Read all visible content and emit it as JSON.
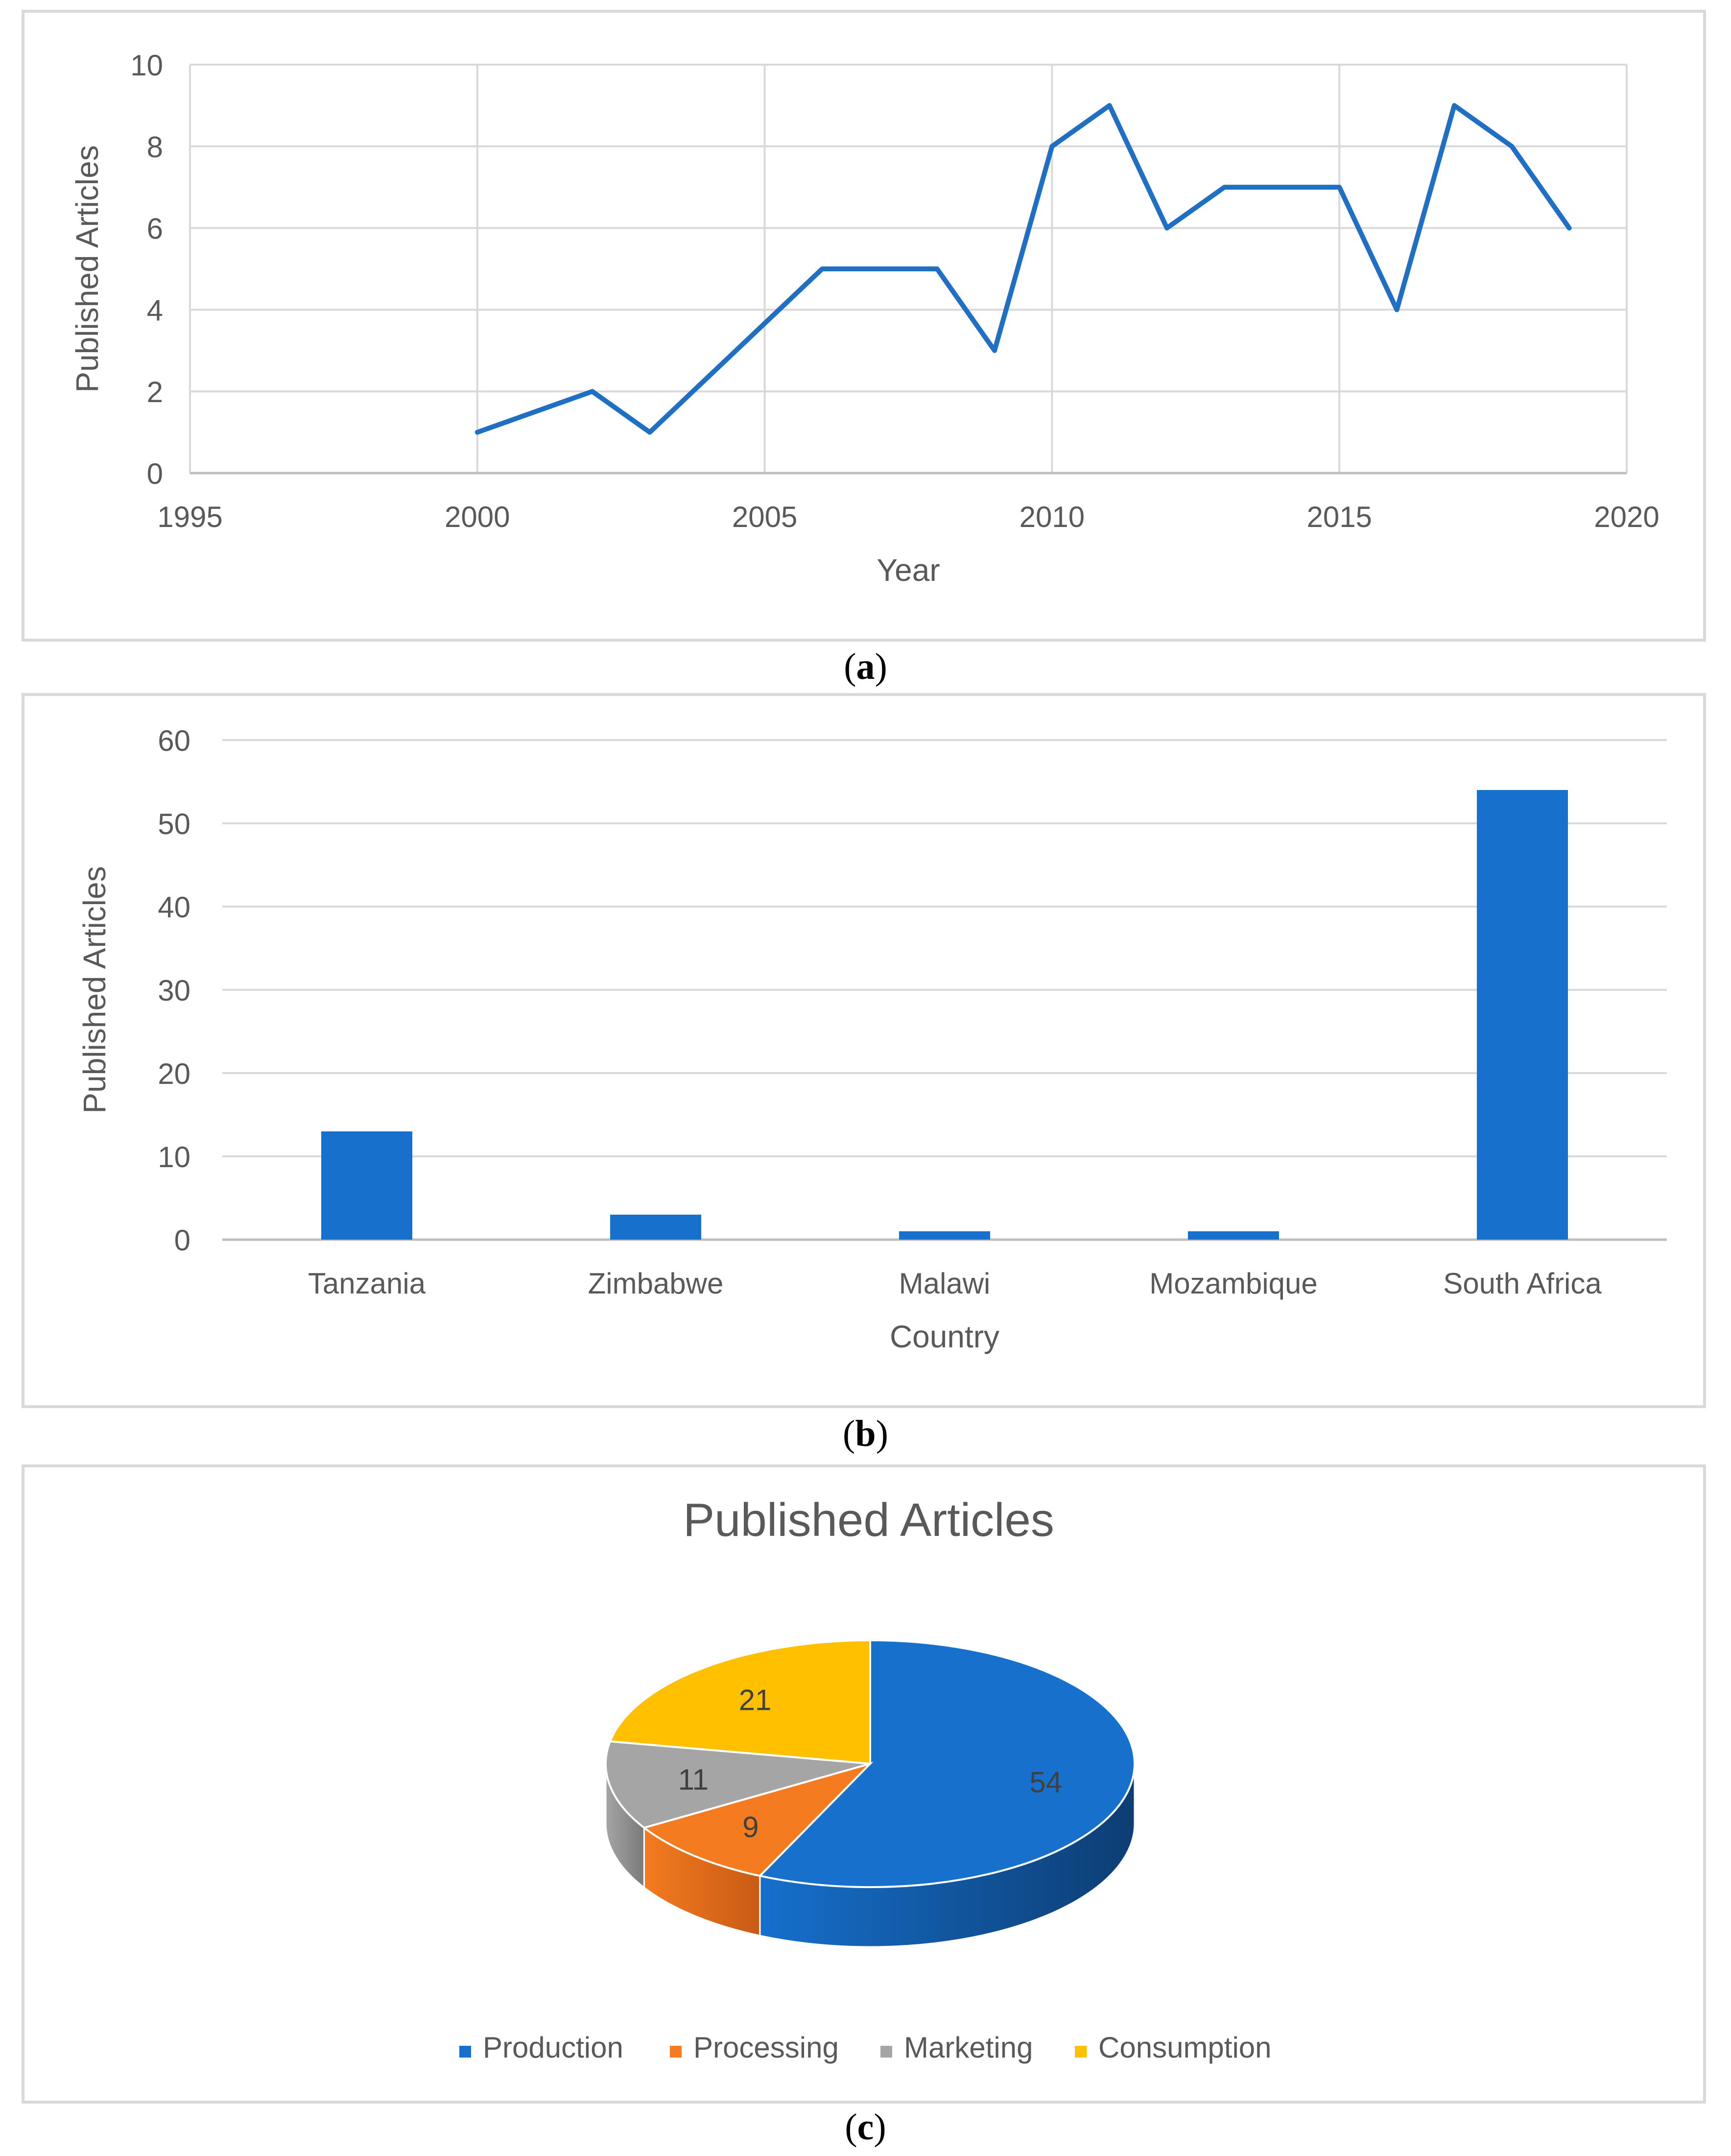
{
  "captions": {
    "a": "a",
    "b": "b",
    "c": "c"
  },
  "chart_data": [
    {
      "type": "line",
      "title": "",
      "xlabel": "Year",
      "ylabel": "Published Articles",
      "xlim": [
        1995,
        2020
      ],
      "ylim": [
        0,
        10
      ],
      "xticks": [
        1995,
        2000,
        2005,
        2010,
        2015,
        2020
      ],
      "yticks": [
        0,
        2,
        4,
        6,
        8,
        10
      ],
      "grid": true,
      "color": "#1f6fc5",
      "x": [
        2000,
        2002,
        2003,
        2006,
        2008,
        2009,
        2010,
        2011,
        2012,
        2013,
        2015,
        2016,
        2017,
        2018,
        2019
      ],
      "y": [
        1,
        2,
        1,
        5,
        5,
        3,
        8,
        9,
        6,
        7,
        7,
        4,
        9,
        8,
        6
      ]
    },
    {
      "type": "bar",
      "title": "",
      "xlabel": "Country",
      "ylabel": "Published Articles",
      "ylim": [
        0,
        60
      ],
      "yticks": [
        0,
        10,
        20,
        30,
        40,
        50,
        60
      ],
      "grid": true,
      "color": "#1670cc",
      "categories": [
        "Tanzania",
        "Zimbabwe",
        "Malawi",
        "Mozambique",
        "South Africa"
      ],
      "values": [
        13,
        3,
        1,
        1,
        54
      ]
    },
    {
      "type": "pie",
      "title": "Published Articles",
      "legend_position": "bottom",
      "categories": [
        "Production",
        "Processing",
        "Marketing",
        "Consumption"
      ],
      "values": [
        54,
        9,
        11,
        21
      ],
      "colors": [
        "#1670cc",
        "#f47b20",
        "#a5a5a5",
        "#ffc000"
      ],
      "side_colors": [
        "#0d3d73",
        "#c85b14",
        "#7a7a7a",
        "#c79400"
      ]
    }
  ]
}
